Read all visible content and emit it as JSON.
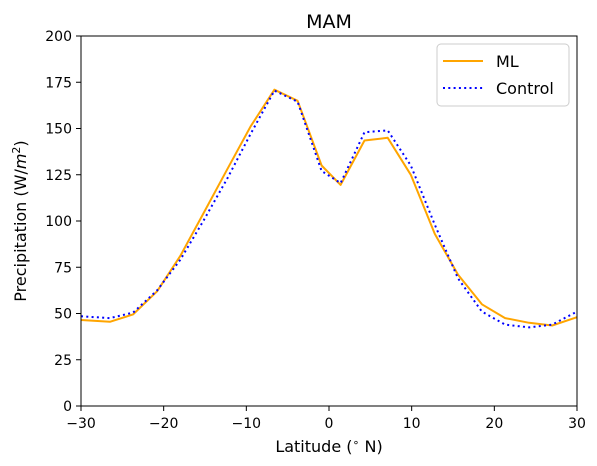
{
  "chart_data": {
    "type": "line",
    "title": "MAM",
    "xlabel_main": "Latitude (",
    "xlabel_deg": "∘",
    "xlabel_end": " N)",
    "ylabel_main": "Precipitation (W/",
    "ylabel_m": "m",
    "ylabel_exp": "2",
    "ylabel_end": ")",
    "xlim": [
      -30,
      30
    ],
    "ylim": [
      0,
      200
    ],
    "xticks": [
      -30,
      -20,
      -10,
      0,
      10,
      20,
      30
    ],
    "xtick_labels": [
      "−30",
      "−20",
      "−10",
      "0",
      "10",
      "20",
      "30"
    ],
    "yticks": [
      0,
      25,
      50,
      75,
      100,
      125,
      150,
      175,
      200
    ],
    "ytick_labels": [
      "0",
      "25",
      "50",
      "75",
      "100",
      "125",
      "150",
      "175",
      "200"
    ],
    "grid": false,
    "legend_position": "top-right",
    "series": [
      {
        "name": "ML",
        "color": "#ffa500",
        "style": "solid",
        "x": [
          -30,
          -26.5,
          -23.7,
          -20.8,
          -18,
          -15.2,
          -12.3,
          -9.5,
          -6.6,
          -3.8,
          -0.9,
          1.4,
          4.3,
          7.1,
          9.9,
          12.8,
          15.6,
          18.5,
          21.3,
          24.2,
          27,
          30
        ],
        "y": [
          46.5,
          45.5,
          49.5,
          62,
          81,
          104,
          128,
          151,
          171,
          165,
          130,
          119.5,
          143.5,
          145,
          125,
          93,
          71,
          55,
          47.5,
          45,
          43.5,
          48
        ]
      },
      {
        "name": "Control",
        "color": "#0000ff",
        "style": "dotted",
        "x": [
          -30,
          -26.5,
          -23.7,
          -20.8,
          -18,
          -15.2,
          -12.3,
          -9.5,
          -6.6,
          -3.8,
          -0.9,
          1.4,
          4.3,
          7.1,
          9.9,
          12.8,
          15.6,
          18.5,
          21.3,
          24.2,
          27,
          30
        ],
        "y": [
          48.5,
          47.5,
          50.5,
          62.5,
          79,
          100,
          123,
          147,
          170.5,
          164.5,
          127,
          120.5,
          148,
          149,
          130,
          98,
          69,
          51,
          44,
          42.5,
          44,
          51
        ]
      }
    ]
  }
}
